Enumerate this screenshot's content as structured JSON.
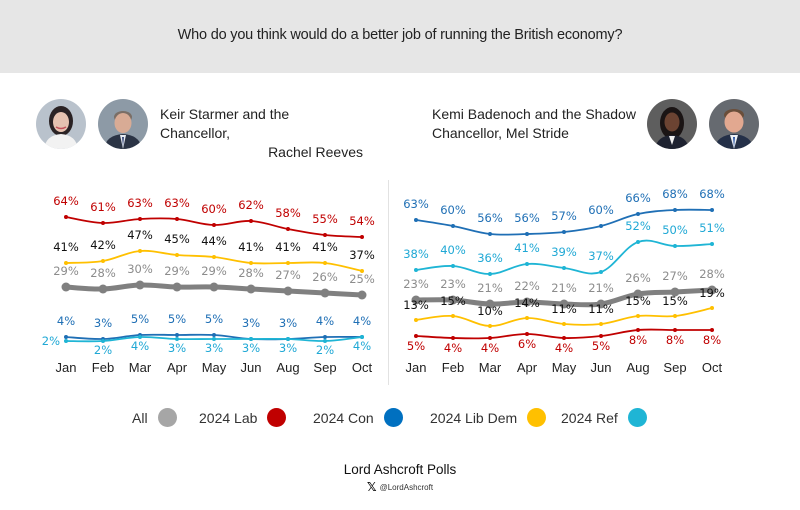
{
  "question": "Who do you think would do a better job of running the British economy?",
  "left_panel": {
    "header_line1": "Keir Starmer and the Chancellor,",
    "header_line2": "Rachel Reeves",
    "avatars": [
      "rachel-reeves-photo",
      "keir-starmer-photo"
    ]
  },
  "right_panel": {
    "header_line1": "Kemi Badenoch and the Shadow",
    "header_line2": "Chancellor, Mel Stride",
    "avatars": [
      "kemi-badenoch-photo",
      "mel-stride-photo"
    ]
  },
  "legend": [
    {
      "key": "all",
      "label": "All",
      "color": "#a6a6a6"
    },
    {
      "key": "lab",
      "label": "2024 Lab",
      "color": "#c00000"
    },
    {
      "key": "con",
      "label": "2024 Con",
      "color": "#0070c0"
    },
    {
      "key": "libdem",
      "label": "2024 Lib Dem",
      "color": "#ffc000"
    },
    {
      "key": "ref",
      "label": "2024 Ref",
      "color": "#1fb5d5"
    }
  ],
  "footer": {
    "brand": "Lord Ashcroft Polls",
    "x_icon": "x-logo-icon",
    "handle": "@LordAshcroft"
  },
  "chart_data": [
    {
      "type": "line",
      "title": "Keir Starmer and the Chancellor, Rachel Reeves",
      "x": [
        "Jan",
        "Feb",
        "Mar",
        "Apr",
        "May",
        "Jun",
        "Aug",
        "Sep",
        "Oct"
      ],
      "ylim": [
        0,
        100
      ],
      "unit": "%",
      "grid": false,
      "series": [
        {
          "key": "lab",
          "name": "2024 Lab",
          "color": "#c00000",
          "label_color": "#c00000",
          "values": [
            64,
            61,
            63,
            63,
            60,
            62,
            58,
            55,
            54
          ]
        },
        {
          "key": "libdem",
          "name": "2024 Lib Dem",
          "color": "#ffc000",
          "label_color": "#111111",
          "values": [
            41,
            42,
            47,
            45,
            44,
            41,
            41,
            41,
            37
          ]
        },
        {
          "key": "all",
          "name": "All",
          "color": "#808080",
          "label_color": "#8c8c8c",
          "values": [
            29,
            28,
            30,
            29,
            29,
            28,
            27,
            26,
            25
          ]
        },
        {
          "key": "con",
          "name": "2024 Con",
          "color": "#1f6fb5",
          "label_color": "#1f6fb5",
          "values": [
            4,
            3,
            5,
            5,
            5,
            3,
            3,
            4,
            4
          ]
        },
        {
          "key": "ref",
          "name": "2024 Ref",
          "color": "#1fb5d5",
          "label_color": "#1fa8d5",
          "values": [
            2,
            2,
            4,
            3,
            3,
            3,
            3,
            2,
            4
          ]
        }
      ]
    },
    {
      "type": "line",
      "title": "Kemi Badenoch and the Shadow Chancellor, Mel Stride",
      "x": [
        "Jan",
        "Feb",
        "Mar",
        "Apr",
        "May",
        "Jun",
        "Aug",
        "Sep",
        "Oct"
      ],
      "ylim": [
        0,
        100
      ],
      "unit": "%",
      "grid": false,
      "series": [
        {
          "key": "con",
          "name": "2024 Con",
          "color": "#1f6fb5",
          "label_color": "#1f6fb5",
          "values": [
            63,
            60,
            56,
            56,
            57,
            60,
            66,
            68,
            68
          ]
        },
        {
          "key": "ref",
          "name": "2024 Ref",
          "color": "#1fb5d5",
          "label_color": "#1fa8d5",
          "values": [
            38,
            40,
            36,
            41,
            39,
            37,
            52,
            50,
            51
          ]
        },
        {
          "key": "all",
          "name": "All",
          "color": "#808080",
          "label_color": "#8c8c8c",
          "values": [
            23,
            23,
            21,
            22,
            21,
            21,
            26,
            27,
            28
          ]
        },
        {
          "key": "libdem",
          "name": "2024 Lib Dem",
          "color": "#ffc000",
          "label_color": "#111111",
          "values": [
            13,
            15,
            10,
            14,
            11,
            11,
            15,
            15,
            19
          ]
        },
        {
          "key": "lab",
          "name": "2024 Lab",
          "color": "#c00000",
          "label_color": "#c00000",
          "values": [
            5,
            4,
            4,
            6,
            4,
            5,
            8,
            8,
            8
          ]
        }
      ]
    }
  ]
}
